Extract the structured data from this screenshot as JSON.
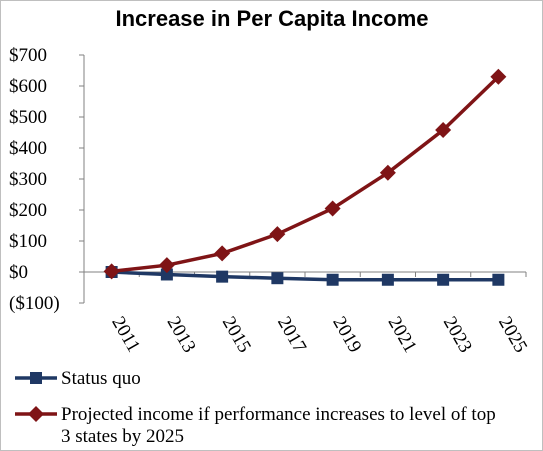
{
  "chart_data": {
    "type": "line",
    "title": "Increase in Per Capita Income",
    "xlabel": "",
    "ylabel": "",
    "categories": [
      "2011",
      "2013",
      "2015",
      "2017",
      "2019",
      "2021",
      "2023",
      "2025"
    ],
    "ylim": [
      -100,
      700
    ],
    "yticks": [
      "($100)",
      "$0",
      "$100",
      "$200",
      "$300",
      "$400",
      "$500",
      "$600",
      "$700"
    ],
    "grid": false,
    "legend_position": "bottom",
    "series": [
      {
        "name": "Status quo",
        "color": "#1f3864",
        "marker": "square",
        "values": [
          0,
          -8,
          -15,
          -20,
          -25,
          -25,
          -25,
          -25
        ]
      },
      {
        "name": "Projected income if performance increases to level of top 3 states by 2025",
        "legend_lines": [
          "Projected income if performance increases to level of top",
          "3 states by 2025"
        ],
        "color": "#7f1416",
        "marker": "diamond",
        "values": [
          2,
          22,
          60,
          122,
          205,
          320,
          458,
          630
        ]
      }
    ]
  }
}
